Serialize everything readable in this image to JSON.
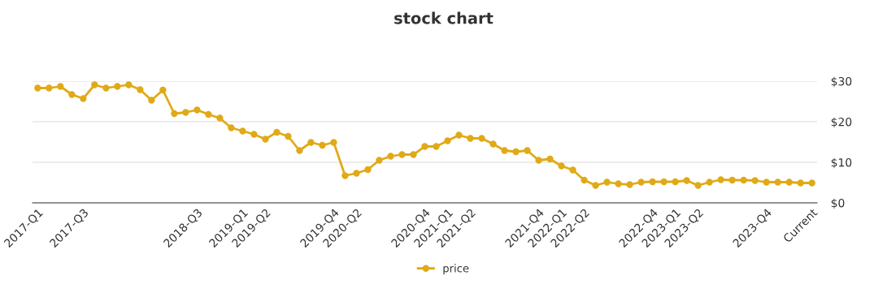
{
  "chart_data": {
    "type": "line",
    "title": "stock chart",
    "categories": [
      "2017-Q1",
      null,
      null,
      null,
      "2017-Q3",
      null,
      null,
      null,
      null,
      null,
      null,
      null,
      null,
      null,
      "2018-Q3",
      null,
      null,
      null,
      "2019-Q1",
      null,
      "2019-Q2",
      null,
      null,
      null,
      null,
      null,
      "2019-Q4",
      null,
      "2020-Q2",
      null,
      null,
      null,
      null,
      null,
      "2020-Q4",
      null,
      "2021-Q1",
      null,
      "2021-Q2",
      null,
      null,
      null,
      null,
      null,
      "2021-Q4",
      null,
      "2022-Q1",
      null,
      "2022-Q2",
      null,
      null,
      null,
      null,
      null,
      "2022-Q4",
      null,
      "2023-Q1",
      null,
      "2023-Q2",
      null,
      null,
      null,
      null,
      null,
      "2023-Q4",
      null,
      null,
      null,
      "Current"
    ],
    "series": [
      {
        "name": "price",
        "color": "#e0aa17",
        "values": [
          28.3,
          28.3,
          28.7,
          26.7,
          25.7,
          29.1,
          28.3,
          28.7,
          29.1,
          27.9,
          25.3,
          27.8,
          22.0,
          22.3,
          22.9,
          21.8,
          20.9,
          18.5,
          17.7,
          16.9,
          15.7,
          17.4,
          16.4,
          12.9,
          14.9,
          14.2,
          14.9,
          6.7,
          7.3,
          8.2,
          10.5,
          11.5,
          11.9,
          11.9,
          13.9,
          13.9,
          15.3,
          16.7,
          15.9,
          15.9,
          14.5,
          12.9,
          12.6,
          12.9,
          10.5,
          10.8,
          9.1,
          8.1,
          5.6,
          4.3,
          5.1,
          4.7,
          4.5,
          5.1,
          5.2,
          5.2,
          5.2,
          5.5,
          4.3,
          5.1,
          5.7,
          5.6,
          5.6,
          5.5,
          5.1,
          5.1,
          5.1,
          4.9,
          4.9
        ]
      }
    ],
    "ylim": [
      0,
      30
    ],
    "yticks": [
      {
        "value": 0,
        "label": "$0"
      },
      {
        "value": 10,
        "label": "$10"
      },
      {
        "value": 20,
        "label": "$20"
      },
      {
        "value": 30,
        "label": "$30"
      }
    ],
    "grid": "y",
    "legend": "bottom",
    "marker": "circle",
    "line_style": "solid"
  }
}
